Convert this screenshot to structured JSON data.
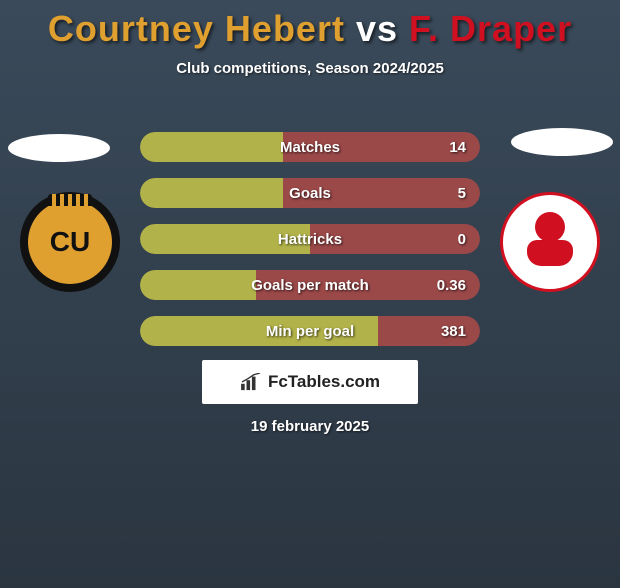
{
  "title": {
    "player1": "Courtney Hebert",
    "vs": "vs",
    "player2": "F. Draper",
    "player1_color": "#e0a030",
    "vs_color": "#ffffff",
    "player2_color": "#d01020"
  },
  "subtitle": "Club competitions, Season 2024/2025",
  "crests": {
    "left_text": "CU",
    "left_bg": "#e0a030",
    "left_border": "#111111",
    "right_bg": "#ffffff",
    "right_accent": "#d01020"
  },
  "stats": {
    "left_color": "#b2b24a",
    "right_color": "#9a4848",
    "rows": [
      {
        "label": "Matches",
        "value": "14",
        "left_pct": 42
      },
      {
        "label": "Goals",
        "value": "5",
        "left_pct": 42
      },
      {
        "label": "Hattricks",
        "value": "0",
        "left_pct": 50
      },
      {
        "label": "Goals per match",
        "value": "0.36",
        "left_pct": 34
      },
      {
        "label": "Min per goal",
        "value": "381",
        "left_pct": 70
      }
    ]
  },
  "logo": {
    "text": "FcTables.com"
  },
  "date": "19 february 2025",
  "background": "linear-gradient(180deg,#3a4a5a,#2a3540)"
}
